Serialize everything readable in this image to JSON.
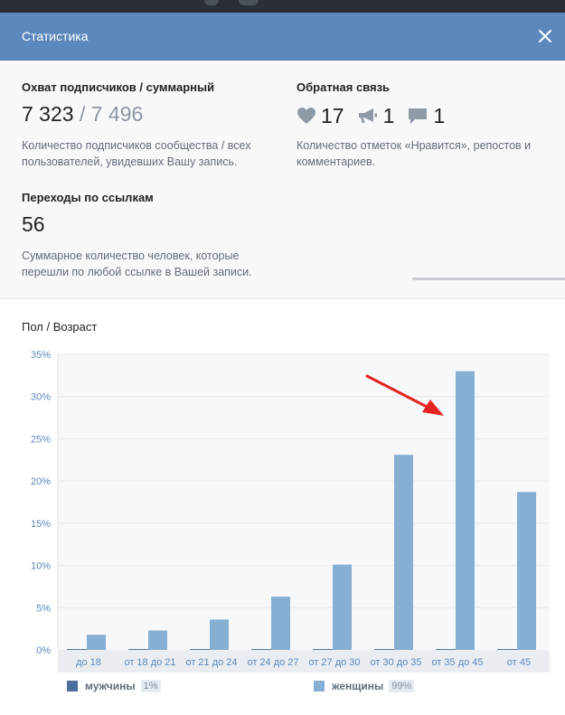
{
  "header": {
    "title": "Статистика"
  },
  "reach": {
    "label": "Охват подписчиков / суммарный",
    "subscribers": "7 323",
    "separator": "/",
    "total": "7 496",
    "desc_line1": "Количество подписчиков сообщества / всех",
    "desc_line2": "пользователей, увидевших Вашу запись."
  },
  "feedback": {
    "label": "Обратная связь",
    "likes": "17",
    "reposts": "1",
    "comments": "1",
    "desc_line1": "Количество отметок «Нравится», репостов и",
    "desc_line2": "комментариев."
  },
  "clicks": {
    "label": "Переходы по ссылкам",
    "value": "56",
    "desc_line1": "Суммарное количество человек, которые",
    "desc_line2": "перешли по любой ссылке в Вашей записи."
  },
  "demographics": {
    "title": "Пол / Возраст"
  },
  "chart_data": {
    "type": "bar",
    "categories": [
      "до 18",
      "от 18 до 21",
      "от 21 до 24",
      "от 24 до 27",
      "от 27 до 30",
      "от 30 до 35",
      "от 35 до 45",
      "от 45"
    ],
    "series": [
      {
        "name": "мужчины",
        "values": [
          0.1,
          0.1,
          0.1,
          0.1,
          0.1,
          0.1,
          0.1,
          0.1
        ],
        "color": "#4a6f9c"
      },
      {
        "name": "женщины",
        "values": [
          1.8,
          2.3,
          3.6,
          6.3,
          10.1,
          23.1,
          33.0,
          18.7
        ],
        "color": "#86afd3"
      }
    ],
    "yticks": [
      "0%",
      "5%",
      "10%",
      "15%",
      "20%",
      "25%",
      "30%",
      "35%"
    ],
    "ylim": [
      0,
      35
    ],
    "grid": true,
    "legend": "bottom"
  },
  "legend": {
    "male": {
      "name": "мужчины",
      "pct": "1%"
    },
    "female": {
      "name": "женщины",
      "pct": "99%"
    }
  },
  "colors": {
    "header": "#5b88bd",
    "bar_female": "#86afd3",
    "bar_male": "#4a6f9c",
    "arrow": "#e52421"
  },
  "icons": {
    "close": "close-icon",
    "like": "heart-icon",
    "repost": "megaphone-icon",
    "comment": "speech-bubble-icon"
  }
}
